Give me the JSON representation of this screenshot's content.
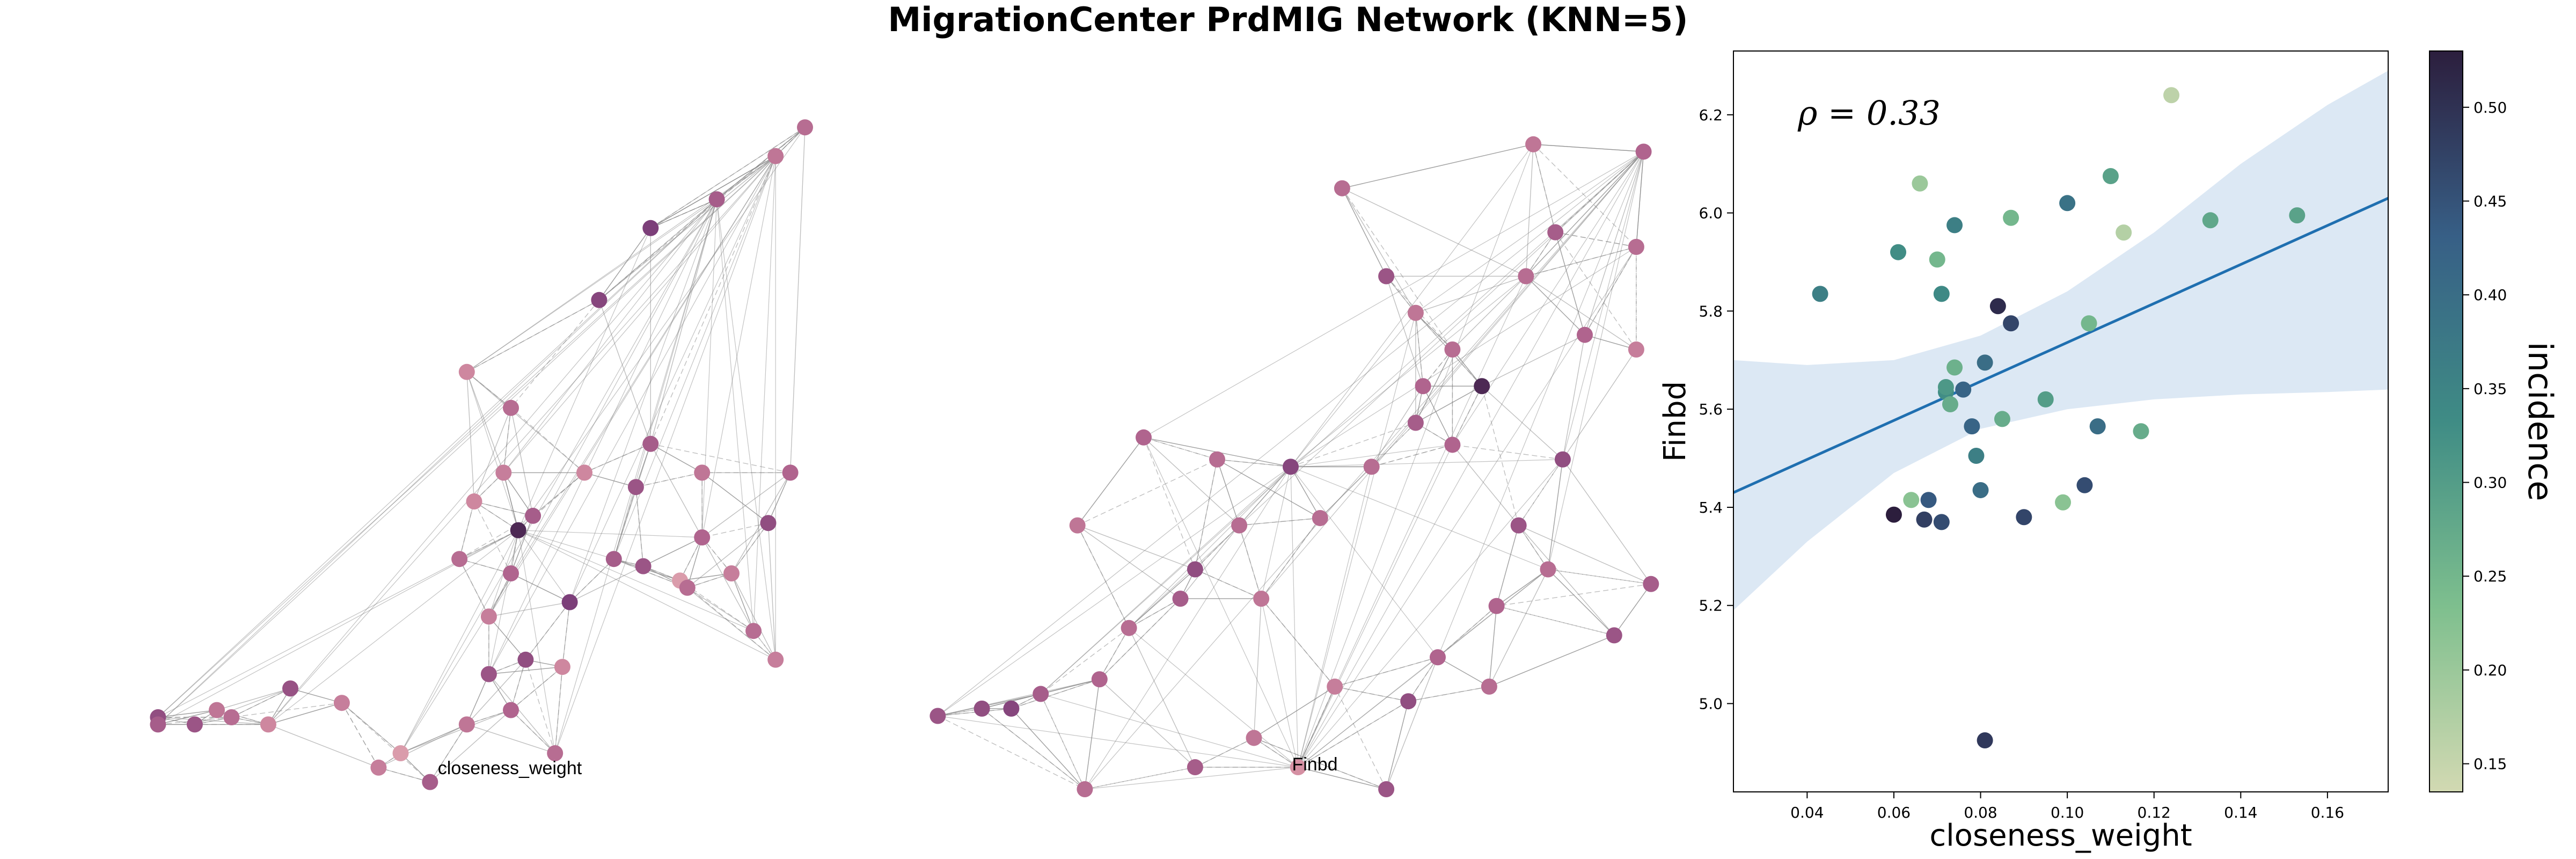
{
  "title": "MigrationCenter PrdMIG Network (KNN=5)",
  "networks": [
    {
      "label": "closeness_weight",
      "nodes": [
        [
          0.12,
          0.9,
          0.65
        ],
        [
          0.17,
          0.91,
          0.6
        ],
        [
          0.22,
          0.9,
          0.45
        ],
        [
          0.27,
          0.91,
          0.3
        ],
        [
          0.3,
          0.86,
          0.62
        ],
        [
          0.37,
          0.88,
          0.35
        ],
        [
          0.45,
          0.95,
          0.2
        ],
        [
          0.54,
          0.91,
          0.4
        ],
        [
          0.6,
          0.89,
          0.5
        ],
        [
          0.66,
          0.95,
          0.45
        ],
        [
          0.42,
          0.97,
          0.35
        ],
        [
          0.49,
          0.99,
          0.55
        ],
        [
          0.12,
          0.91,
          0.55
        ],
        [
          0.2,
          0.89,
          0.4
        ],
        [
          0.53,
          0.68,
          0.45
        ],
        [
          0.57,
          0.84,
          0.6
        ],
        [
          0.63,
          0.62,
          0.55
        ],
        [
          0.67,
          0.83,
          0.3
        ],
        [
          0.68,
          0.74,
          0.75
        ],
        [
          0.83,
          0.71,
          0.2
        ],
        [
          0.84,
          0.72,
          0.45
        ],
        [
          0.86,
          0.65,
          0.5
        ],
        [
          0.77,
          0.58,
          0.6
        ],
        [
          0.78,
          0.69,
          0.6
        ],
        [
          0.57,
          0.76,
          0.35
        ],
        [
          0.6,
          0.7,
          0.5
        ],
        [
          0.61,
          0.64,
          0.9
        ],
        [
          0.74,
          0.68,
          0.55
        ],
        [
          0.86,
          0.56,
          0.4
        ],
        [
          0.9,
          0.7,
          0.35
        ],
        [
          0.93,
          0.78,
          0.45
        ],
        [
          0.95,
          0.63,
          0.65
        ],
        [
          0.98,
          0.56,
          0.5
        ],
        [
          0.96,
          0.82,
          0.35
        ],
        [
          0.79,
          0.52,
          0.55
        ],
        [
          0.7,
          0.56,
          0.3
        ],
        [
          0.54,
          0.42,
          0.3
        ],
        [
          0.6,
          0.47,
          0.45
        ],
        [
          0.72,
          0.32,
          0.7
        ],
        [
          0.79,
          0.22,
          0.75
        ],
        [
          0.88,
          0.18,
          0.55
        ],
        [
          0.96,
          0.12,
          0.4
        ],
        [
          1.0,
          0.08,
          0.45
        ],
        [
          0.62,
          0.82,
          0.65
        ],
        [
          0.55,
          0.6,
          0.3
        ],
        [
          0.59,
          0.56,
          0.35
        ]
      ]
    },
    {
      "label": "Finbd",
      "nodes": [
        [
          0.22,
          1.0,
          0.45
        ],
        [
          0.37,
          0.97,
          0.55
        ],
        [
          0.45,
          0.93,
          0.4
        ],
        [
          0.51,
          0.97,
          0.25
        ],
        [
          0.63,
          1.0,
          0.6
        ],
        [
          0.66,
          0.88,
          0.65
        ],
        [
          0.7,
          0.82,
          0.5
        ],
        [
          0.77,
          0.86,
          0.45
        ],
        [
          0.78,
          0.75,
          0.5
        ],
        [
          0.85,
          0.7,
          0.45
        ],
        [
          0.94,
          0.79,
          0.6
        ],
        [
          0.99,
          0.72,
          0.55
        ],
        [
          0.46,
          0.74,
          0.4
        ],
        [
          0.54,
          0.63,
          0.45
        ],
        [
          0.5,
          0.56,
          0.7
        ],
        [
          0.61,
          0.56,
          0.45
        ],
        [
          0.67,
          0.5,
          0.55
        ],
        [
          0.68,
          0.45,
          0.5
        ],
        [
          0.72,
          0.53,
          0.5
        ],
        [
          0.76,
          0.45,
          0.9
        ],
        [
          0.81,
          0.64,
          0.6
        ],
        [
          0.87,
          0.55,
          0.65
        ],
        [
          0.9,
          0.38,
          0.5
        ],
        [
          0.97,
          0.4,
          0.35
        ],
        [
          0.97,
          0.26,
          0.45
        ],
        [
          0.98,
          0.13,
          0.5
        ],
        [
          0.86,
          0.24,
          0.55
        ],
        [
          0.83,
          0.12,
          0.4
        ],
        [
          0.57,
          0.18,
          0.45
        ],
        [
          0.37,
          0.7,
          0.65
        ],
        [
          0.28,
          0.78,
          0.45
        ],
        [
          0.24,
          0.85,
          0.5
        ],
        [
          0.21,
          0.64,
          0.4
        ],
        [
          0.16,
          0.87,
          0.55
        ],
        [
          0.12,
          0.89,
          0.7
        ],
        [
          0.08,
          0.89,
          0.65
        ],
        [
          0.02,
          0.9,
          0.6
        ],
        [
          0.43,
          0.64,
          0.45
        ],
        [
          0.35,
          0.74,
          0.55
        ],
        [
          0.3,
          0.52,
          0.5
        ],
        [
          0.4,
          0.55,
          0.45
        ],
        [
          0.56,
          0.86,
          0.35
        ],
        [
          0.67,
          0.35,
          0.4
        ],
        [
          0.63,
          0.3,
          0.6
        ],
        [
          0.72,
          0.4,
          0.45
        ],
        [
          0.82,
          0.3,
          0.45
        ]
      ]
    }
  ],
  "chart_data": {
    "type": "scatter",
    "annotation": "ρ = 0.33",
    "xlabel": "closeness_weight",
    "ylabel": "Finbd",
    "xlim": [
      0.023,
      0.174
    ],
    "ylim": [
      4.82,
      6.33
    ],
    "xticks": [
      "0.04",
      "0.06",
      "0.08",
      "0.10",
      "0.12",
      "0.14",
      "0.16"
    ],
    "yticks": [
      "5.0",
      "5.2",
      "5.4",
      "5.6",
      "5.8",
      "6.0",
      "6.2"
    ],
    "colorbar": {
      "label": "incidence",
      "range": [
        0.135,
        0.53
      ],
      "ticks": [
        "0.15",
        "0.20",
        "0.25",
        "0.30",
        "0.35",
        "0.40",
        "0.45",
        "0.50"
      ]
    },
    "regression": {
      "x": [
        0.023,
        0.174
      ],
      "y": [
        5.43,
        6.03
      ]
    },
    "confidence_band": {
      "x": [
        0.023,
        0.04,
        0.06,
        0.08,
        0.1,
        0.12,
        0.14,
        0.16,
        0.174
      ],
      "lower": [
        5.19,
        5.33,
        5.47,
        5.56,
        5.6,
        5.62,
        5.63,
        5.635,
        5.64
      ],
      "upper": [
        5.7,
        5.69,
        5.7,
        5.75,
        5.84,
        5.96,
        6.1,
        6.22,
        6.29
      ]
    },
    "points": [
      {
        "x": 0.043,
        "y": 5.835,
        "c": 0.36
      },
      {
        "x": 0.061,
        "y": 5.92,
        "c": 0.33
      },
      {
        "x": 0.066,
        "y": 6.06,
        "c": 0.2
      },
      {
        "x": 0.07,
        "y": 5.905,
        "c": 0.25
      },
      {
        "x": 0.071,
        "y": 5.835,
        "c": 0.34
      },
      {
        "x": 0.074,
        "y": 5.975,
        "c": 0.36
      },
      {
        "x": 0.087,
        "y": 5.99,
        "c": 0.25
      },
      {
        "x": 0.1,
        "y": 6.02,
        "c": 0.39
      },
      {
        "x": 0.11,
        "y": 6.075,
        "c": 0.29
      },
      {
        "x": 0.113,
        "y": 5.96,
        "c": 0.17
      },
      {
        "x": 0.124,
        "y": 6.24,
        "c": 0.16
      },
      {
        "x": 0.133,
        "y": 5.985,
        "c": 0.28
      },
      {
        "x": 0.153,
        "y": 5.995,
        "c": 0.29
      },
      {
        "x": 0.084,
        "y": 5.81,
        "c": 0.51
      },
      {
        "x": 0.087,
        "y": 5.775,
        "c": 0.47
      },
      {
        "x": 0.105,
        "y": 5.775,
        "c": 0.25
      },
      {
        "x": 0.081,
        "y": 5.695,
        "c": 0.4
      },
      {
        "x": 0.072,
        "y": 5.635,
        "c": 0.33
      },
      {
        "x": 0.073,
        "y": 5.61,
        "c": 0.27
      },
      {
        "x": 0.074,
        "y": 5.685,
        "c": 0.26
      },
      {
        "x": 0.076,
        "y": 5.64,
        "c": 0.42
      },
      {
        "x": 0.078,
        "y": 5.565,
        "c": 0.42
      },
      {
        "x": 0.085,
        "y": 5.58,
        "c": 0.27
      },
      {
        "x": 0.095,
        "y": 5.62,
        "c": 0.3
      },
      {
        "x": 0.107,
        "y": 5.565,
        "c": 0.4
      },
      {
        "x": 0.117,
        "y": 5.555,
        "c": 0.27
      },
      {
        "x": 0.072,
        "y": 5.645,
        "c": 0.31
      },
      {
        "x": 0.06,
        "y": 5.385,
        "c": 0.53
      },
      {
        "x": 0.064,
        "y": 5.415,
        "c": 0.22
      },
      {
        "x": 0.067,
        "y": 5.375,
        "c": 0.48
      },
      {
        "x": 0.068,
        "y": 5.415,
        "c": 0.44
      },
      {
        "x": 0.071,
        "y": 5.37,
        "c": 0.46
      },
      {
        "x": 0.079,
        "y": 5.505,
        "c": 0.36
      },
      {
        "x": 0.08,
        "y": 5.435,
        "c": 0.4
      },
      {
        "x": 0.09,
        "y": 5.38,
        "c": 0.47
      },
      {
        "x": 0.099,
        "y": 5.41,
        "c": 0.22
      },
      {
        "x": 0.104,
        "y": 5.445,
        "c": 0.46
      },
      {
        "x": 0.081,
        "y": 4.925,
        "c": 0.49
      }
    ]
  }
}
